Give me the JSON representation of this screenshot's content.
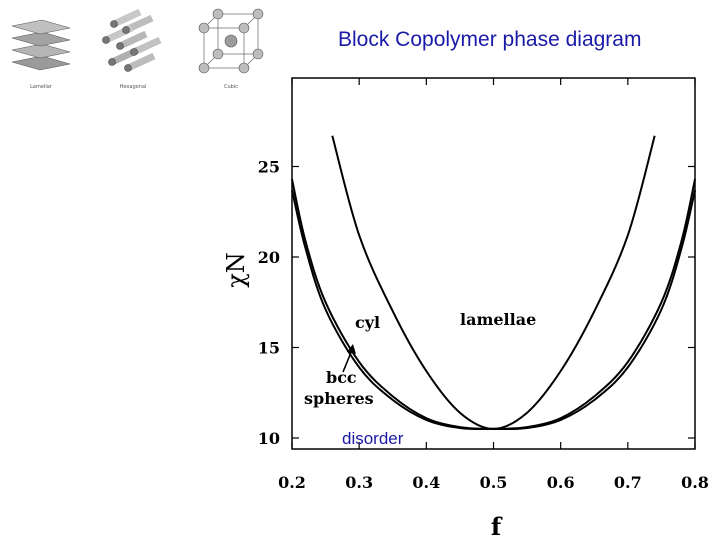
{
  "title": "Block Copolymer phase diagram",
  "morphology_icons": [
    {
      "name": "lamellar",
      "caption": "Lamellar"
    },
    {
      "name": "hexagonal",
      "caption": "Hexagonal"
    },
    {
      "name": "cubic",
      "caption": "Cubic"
    }
  ],
  "chart_data": {
    "type": "line",
    "xlabel": "f",
    "ylabel": "χN",
    "xlim": [
      0.2,
      0.8
    ],
    "ylim": [
      10,
      26.7
    ],
    "xticks": [
      "0.2",
      "0.3",
      "0.4",
      "0.5",
      "0.6",
      "0.7",
      "0.8"
    ],
    "yticks": [
      "10",
      "15",
      "20",
      "25"
    ],
    "region_labels": {
      "cyl": "cyl",
      "lamellae": "lamellae",
      "bcc_line1": "bcc",
      "bcc_line2": "spheres",
      "disorder": "disorder"
    },
    "series": [
      {
        "values": [
          [
            0.2,
            24.3
          ],
          [
            0.22,
            20.9
          ],
          [
            0.25,
            17.5
          ],
          [
            0.3,
            14.2
          ],
          [
            0.35,
            12.3
          ],
          [
            0.4,
            11.1
          ],
          [
            0.45,
            10.6
          ],
          [
            0.5,
            10.5
          ],
          [
            0.55,
            10.6
          ],
          [
            0.6,
            11.1
          ],
          [
            0.65,
            12.3
          ],
          [
            0.7,
            14.2
          ],
          [
            0.75,
            17.5
          ],
          [
            0.78,
            20.9
          ],
          [
            0.8,
            24.3
          ]
        ]
      },
      {
        "values": [
          [
            0.2,
            23.7
          ],
          [
            0.22,
            20.5
          ],
          [
            0.25,
            17.1
          ],
          [
            0.3,
            13.9
          ],
          [
            0.35,
            12.1
          ],
          [
            0.4,
            11.0
          ],
          [
            0.45,
            10.55
          ],
          [
            0.5,
            10.5
          ],
          [
            0.55,
            10.55
          ],
          [
            0.6,
            11.0
          ],
          [
            0.65,
            12.1
          ],
          [
            0.7,
            13.9
          ],
          [
            0.75,
            17.1
          ],
          [
            0.78,
            20.5
          ],
          [
            0.8,
            23.7
          ]
        ]
      },
      {
        "values": [
          [
            0.26,
            26.7
          ],
          [
            0.3,
            21.2
          ],
          [
            0.35,
            17.0
          ],
          [
            0.4,
            13.7
          ],
          [
            0.45,
            11.4
          ],
          [
            0.5,
            10.5
          ],
          [
            0.55,
            11.4
          ],
          [
            0.6,
            13.7
          ],
          [
            0.65,
            17.0
          ],
          [
            0.7,
            21.2
          ],
          [
            0.74,
            26.7
          ]
        ]
      }
    ]
  }
}
